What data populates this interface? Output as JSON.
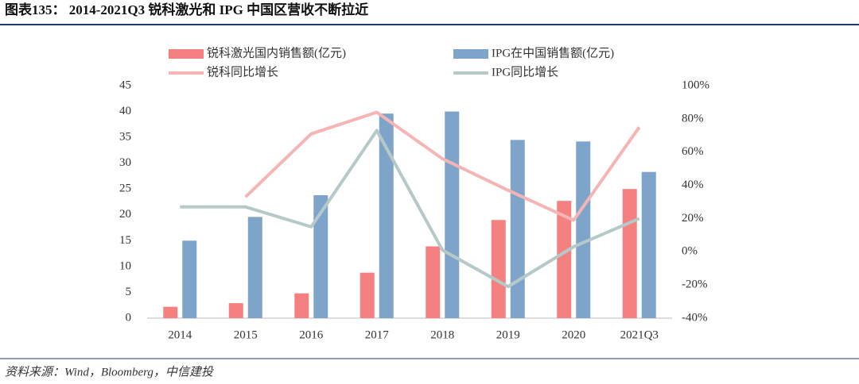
{
  "chart_data": {
    "type": "combo",
    "title": "图表135： 2014-2021Q3 锐科激光和 IPG 中国区营收不断拉近",
    "source": "资料来源：Wind，Bloomberg，中信建投",
    "categories": [
      "2014",
      "2015",
      "2016",
      "2017",
      "2018",
      "2019",
      "2020",
      "2021Q3"
    ],
    "series": [
      {
        "name": "锐科激光国内销售额(亿元)",
        "type": "bar",
        "color": "#f48080",
        "values": [
          2.2,
          2.9,
          4.8,
          8.8,
          13.9,
          19.0,
          22.7,
          25.0
        ]
      },
      {
        "name": "IPG在中国销售额(亿元)",
        "type": "bar",
        "color": "#7ea4c9",
        "values": [
          15.0,
          19.6,
          23.8,
          39.6,
          40.0,
          34.5,
          34.2,
          28.3
        ]
      },
      {
        "name": "锐科同比增长",
        "type": "line",
        "axis": "y2",
        "color": "#f5b5b5",
        "values": [
          null,
          33,
          71,
          84,
          56,
          37,
          19,
          75
        ]
      },
      {
        "name": "IPG同比增长",
        "type": "line",
        "axis": "y2",
        "color": "#b5c9c8",
        "values": [
          27,
          27,
          15,
          73,
          1,
          -21,
          3,
          20
        ]
      }
    ],
    "ylim": [
      0,
      45
    ],
    "yticks": [
      0,
      5,
      10,
      15,
      20,
      25,
      30,
      35,
      40,
      45
    ],
    "y2lim": [
      -40,
      100
    ],
    "y2ticks": [
      {
        "value": -40,
        "label": "-40%"
      },
      {
        "value": -20,
        "label": "-20%"
      },
      {
        "value": 0,
        "label": "0%"
      },
      {
        "value": 20,
        "label": "20%"
      },
      {
        "value": 40,
        "label": "40%"
      },
      {
        "value": 60,
        "label": "60%"
      },
      {
        "value": 80,
        "label": "80%"
      },
      {
        "value": 100,
        "label": "100%"
      }
    ]
  }
}
